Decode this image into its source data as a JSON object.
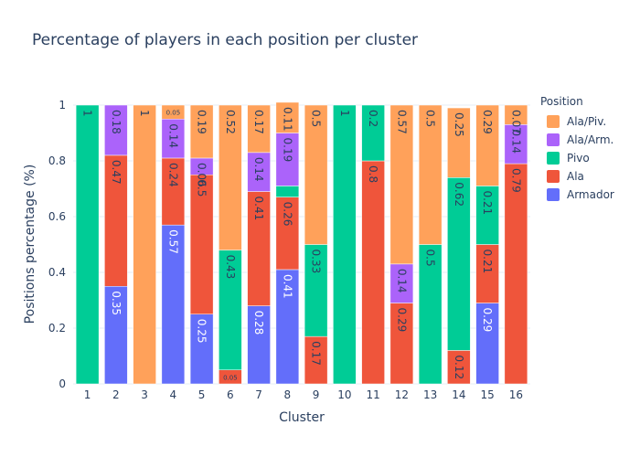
{
  "chart_data": {
    "type": "bar",
    "stacked": true,
    "title": "Percentage of players in each position per cluster",
    "xlabel": "Cluster",
    "ylabel": "Positions percentage (%)",
    "ylim": [
      0,
      1
    ],
    "yticks": [
      "0",
      "0.2",
      "0.4",
      "0.6",
      "0.8",
      "1"
    ],
    "categories": [
      "1",
      "2",
      "3",
      "4",
      "5",
      "6",
      "7",
      "8",
      "9",
      "10",
      "11",
      "12",
      "13",
      "14",
      "15",
      "16"
    ],
    "legend_title": "Position",
    "legend_placement": "right",
    "grid": true,
    "series": [
      {
        "name": "Armador",
        "color": "#636efa",
        "values": [
          0,
          0.35,
          0,
          0.57,
          0.25,
          0,
          0.28,
          0.41,
          0,
          0,
          0,
          0,
          0,
          0,
          0.29,
          0
        ],
        "labels": [
          "",
          "0.35",
          "",
          "0.57",
          "0.25",
          "",
          "0.28",
          "0.41",
          "",
          "",
          "",
          "",
          "",
          "",
          "0.29",
          ""
        ]
      },
      {
        "name": "Ala",
        "color": "#ef553b",
        "values": [
          0,
          0.47,
          0,
          0.24,
          0.5,
          0.05,
          0.41,
          0.26,
          0.17,
          0,
          0.8,
          0.29,
          0,
          0.12,
          0.21,
          0.79
        ],
        "labels": [
          "",
          "0.47",
          "",
          "0.24",
          "0.5",
          "0.05",
          "0.41",
          "0.26",
          "0.17",
          "",
          "0.8",
          "0.29",
          "",
          "0.12",
          "0.21",
          "0.79"
        ]
      },
      {
        "name": "Pivo",
        "color": "#00cc96",
        "values": [
          1,
          0,
          0,
          0,
          0,
          0.43,
          0,
          0.04,
          0.33,
          1,
          0.2,
          0,
          0.5,
          0.62,
          0.21,
          0
        ],
        "labels": [
          "1",
          "",
          "",
          "",
          "",
          "0.43",
          "",
          "",
          "0.33",
          "1",
          "0.2",
          "",
          "0.5",
          "0.62",
          "0.21",
          ""
        ]
      },
      {
        "name": "Ala/Arm.",
        "color": "#ab63fa",
        "values": [
          0,
          0.18,
          0,
          0.14,
          0.06,
          0,
          0.14,
          0.19,
          0,
          0,
          0,
          0.14,
          0,
          0,
          0,
          0.14
        ],
        "labels": [
          "",
          "0.18",
          "",
          "0.14",
          "0.06",
          "",
          "0.14",
          "0.19",
          "",
          "",
          "",
          "0.14",
          "",
          "",
          "",
          "0.14"
        ]
      },
      {
        "name": "Ala/Piv.",
        "color": "#ffa15a",
        "values": [
          0,
          0,
          1,
          0.05,
          0.19,
          0.52,
          0.17,
          0.11,
          0.5,
          0,
          0,
          0.57,
          0.5,
          0.25,
          0.29,
          0.07
        ],
        "labels": [
          "",
          "",
          "1",
          "0.05",
          "0.19",
          "0.52",
          "0.17",
          "0.11",
          "0.5",
          "",
          "",
          "0.57",
          "0.5",
          "0.25",
          "0.29",
          "0.07"
        ]
      }
    ],
    "legend_order": [
      "Ala/Piv.",
      "Ala/Arm.",
      "Pivo",
      "Ala",
      "Armador"
    ]
  }
}
